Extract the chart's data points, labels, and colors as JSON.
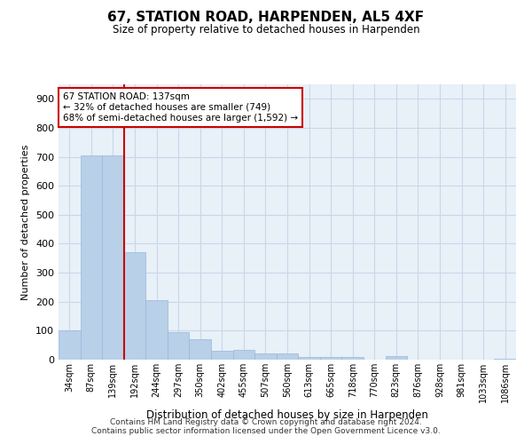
{
  "title": "67, STATION ROAD, HARPENDEN, AL5 4XF",
  "subtitle": "Size of property relative to detached houses in Harpenden",
  "xlabel": "Distribution of detached houses by size in Harpenden",
  "ylabel": "Number of detached properties",
  "categories": [
    "34sqm",
    "87sqm",
    "139sqm",
    "192sqm",
    "244sqm",
    "297sqm",
    "350sqm",
    "402sqm",
    "455sqm",
    "507sqm",
    "560sqm",
    "613sqm",
    "665sqm",
    "718sqm",
    "770sqm",
    "823sqm",
    "876sqm",
    "928sqm",
    "981sqm",
    "1033sqm",
    "1086sqm"
  ],
  "values": [
    100,
    705,
    705,
    370,
    205,
    95,
    70,
    30,
    33,
    20,
    20,
    10,
    8,
    8,
    0,
    12,
    0,
    0,
    0,
    0,
    2
  ],
  "bar_color": "#b8d0e8",
  "bar_edgecolor": "#9ab8d8",
  "grid_color": "#c8d8e8",
  "bg_color": "#e8f0f8",
  "vline_color": "#cc0000",
  "vline_pos": 2.5,
  "annotation_text": "67 STATION ROAD: 137sqm\n← 32% of detached houses are smaller (749)\n68% of semi-detached houses are larger (1,592) →",
  "annotation_box_color": "#cc0000",
  "ylim": [
    0,
    950
  ],
  "yticks": [
    0,
    100,
    200,
    300,
    400,
    500,
    600,
    700,
    800,
    900
  ],
  "footer": "Contains HM Land Registry data © Crown copyright and database right 2024.\nContains public sector information licensed under the Open Government Licence v3.0."
}
